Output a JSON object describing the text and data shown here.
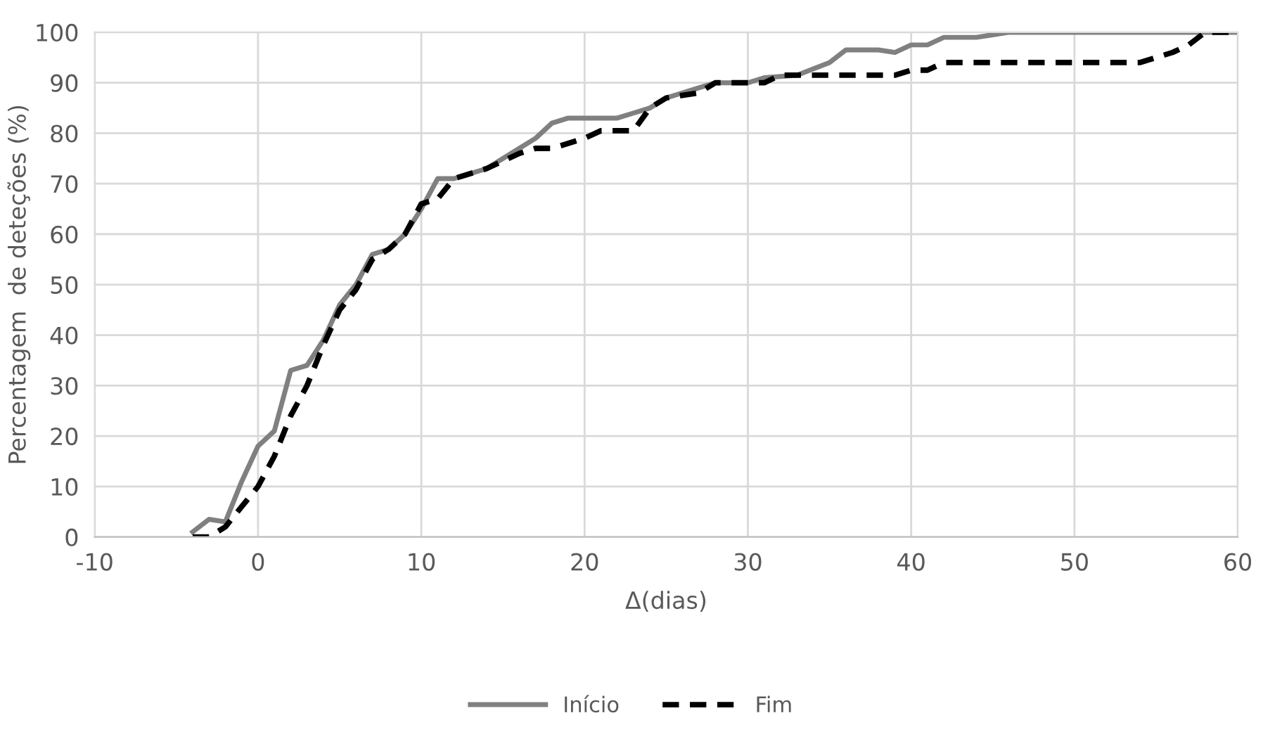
{
  "chart_data": {
    "type": "line",
    "xlabel": "Δ(dias)",
    "ylabel": "Percentagem  de deteções (%)",
    "xlim": [
      -10,
      60
    ],
    "xticks": [
      -10,
      0,
      10,
      20,
      30,
      40,
      50,
      60
    ],
    "ylim": [
      0,
      100
    ],
    "yticks": [
      0,
      10,
      20,
      30,
      40,
      50,
      60,
      70,
      80,
      90,
      100
    ],
    "grid": true,
    "legend": "bottom",
    "marker": "none",
    "series": [
      {
        "name": "Início",
        "color": "#808080",
        "line_style": "solid",
        "x": [
          -4,
          -3,
          -2,
          -1,
          0,
          1,
          2,
          3,
          4,
          5,
          6,
          7,
          8,
          9,
          10,
          11,
          12,
          14,
          16,
          17,
          18,
          19,
          22,
          23,
          24,
          25,
          27,
          28,
          30,
          31,
          33,
          35,
          36,
          38,
          39,
          40,
          41,
          42,
          44,
          45,
          46,
          60
        ],
        "values": [
          1,
          3.5,
          3,
          11,
          18,
          21,
          33,
          34,
          39,
          46,
          50,
          56,
          57,
          60,
          65,
          71,
          71,
          73,
          77,
          79,
          82,
          83,
          83,
          84,
          85,
          87,
          89,
          90,
          90,
          91,
          91.5,
          94,
          96.5,
          96.5,
          96,
          97.5,
          97.5,
          99,
          99,
          99.5,
          100,
          100
        ]
      },
      {
        "name": "Fim",
        "color": "#000000",
        "line_style": "dashed",
        "x": [
          -4,
          -3,
          -2,
          -1,
          0,
          1,
          2,
          3,
          4,
          5,
          6,
          7,
          8,
          9,
          10,
          11,
          12,
          14,
          16,
          17,
          18,
          20,
          21,
          23,
          24,
          25,
          27,
          28,
          31,
          32,
          38,
          39,
          40,
          41,
          42,
          54,
          56,
          57,
          58,
          60
        ],
        "values": [
          0,
          0,
          2,
          6,
          10,
          16,
          24,
          30,
          38,
          45,
          49,
          55,
          57,
          60,
          66,
          67,
          71,
          73,
          76,
          77,
          77,
          79,
          80.5,
          80.5,
          85,
          87,
          88,
          90,
          90,
          91.5,
          91.5,
          91.5,
          92.5,
          92.5,
          94,
          94,
          96,
          97.5,
          100,
          100
        ]
      }
    ]
  }
}
